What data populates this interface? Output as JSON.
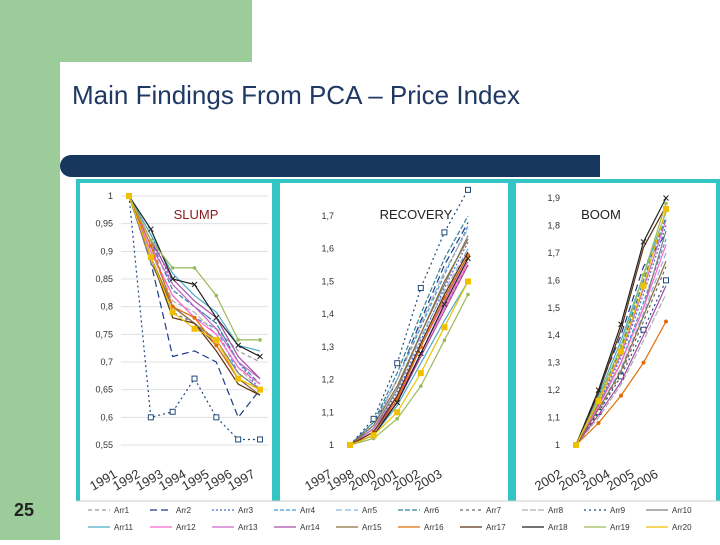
{
  "slide": {
    "title": "Main Findings From PCA – Price Index",
    "page_number": "25",
    "colors": {
      "green": "#9ccc99",
      "navy": "#17375e",
      "teal": "#33c4c4",
      "title": "#1f3864"
    }
  },
  "chart_data": [
    {
      "type": "line",
      "panel_label": "SLUMP",
      "x": [
        "1991",
        "1992",
        "1993",
        "1994",
        "1995",
        "1996",
        "1997"
      ],
      "ylim": [
        0.55,
        1.0
      ],
      "yticks": [
        "1",
        "0,95",
        "0,9",
        "0,85",
        "0,8",
        "0,75",
        "0,7",
        "0,65",
        "0,6",
        "0,55"
      ],
      "grid": true,
      "series": [
        {
          "name": "Arr1",
          "values": [
            1,
            0.92,
            0.8,
            0.78,
            0.76,
            0.72,
            0.7
          ]
        },
        {
          "name": "Arr2",
          "values": [
            1,
            0.88,
            0.71,
            0.72,
            0.7,
            0.6,
            0.65
          ]
        },
        {
          "name": "Arr3",
          "values": [
            1,
            0.93,
            0.84,
            0.8,
            0.77,
            0.7,
            0.65
          ]
        },
        {
          "name": "Arr4",
          "values": [
            1,
            0.9,
            0.82,
            0.78,
            0.76,
            0.68,
            0.65
          ]
        },
        {
          "name": "Arr5",
          "values": [
            1,
            0.91,
            0.8,
            0.77,
            0.74,
            0.67,
            0.64
          ]
        },
        {
          "name": "Arr6",
          "values": [
            1,
            0.92,
            0.83,
            0.8,
            0.77,
            0.7,
            0.66
          ]
        },
        {
          "name": "Arr7",
          "values": [
            1,
            0.89,
            0.79,
            0.77,
            0.74,
            0.67,
            0.64
          ]
        },
        {
          "name": "Arr8",
          "values": [
            1,
            0.9,
            0.81,
            0.79,
            0.75,
            0.69,
            0.65
          ]
        },
        {
          "name": "Arr9",
          "values": [
            1,
            0.6,
            0.61,
            0.67,
            0.6,
            0.56,
            0.56
          ]
        },
        {
          "name": "Arr10",
          "values": [
            1,
            0.88,
            0.8,
            0.77,
            0.74,
            0.68,
            0.65
          ]
        },
        {
          "name": "Arr11",
          "values": [
            1,
            0.93,
            0.86,
            0.82,
            0.79,
            0.73,
            0.72
          ]
        },
        {
          "name": "Arr12",
          "values": [
            1,
            0.9,
            0.82,
            0.78,
            0.75,
            0.69,
            0.66
          ]
        },
        {
          "name": "Arr13",
          "values": [
            1,
            0.91,
            0.84,
            0.8,
            0.76,
            0.7,
            0.67
          ]
        },
        {
          "name": "Arr14",
          "values": [
            1,
            0.92,
            0.85,
            0.81,
            0.78,
            0.71,
            0.67
          ]
        },
        {
          "name": "Arr15",
          "values": [
            1,
            0.89,
            0.8,
            0.77,
            0.73,
            0.67,
            0.64
          ]
        },
        {
          "name": "Arr16",
          "values": [
            1,
            0.91,
            0.8,
            0.78,
            0.73,
            0.67,
            0.65
          ]
        },
        {
          "name": "Arr17",
          "values": [
            1,
            0.89,
            0.78,
            0.77,
            0.72,
            0.66,
            0.64
          ]
        },
        {
          "name": "Arr18",
          "values": [
            1,
            0.94,
            0.85,
            0.84,
            0.78,
            0.73,
            0.71
          ]
        },
        {
          "name": "Arr19",
          "values": [
            1,
            0.92,
            0.87,
            0.87,
            0.82,
            0.74,
            0.74
          ]
        },
        {
          "name": "Arr20",
          "values": [
            1,
            0.89,
            0.79,
            0.76,
            0.74,
            0.67,
            0.65
          ]
        }
      ]
    },
    {
      "type": "line",
      "panel_label": "RECOVERY",
      "x": [
        "1997",
        "1998",
        "2000",
        "2001",
        "2002",
        "2003"
      ],
      "ylim": [
        1.0,
        1.7
      ],
      "yticks": [
        "1,7",
        "1,6",
        "1,5",
        "1,4",
        "1,3",
        "1,2",
        "1,1",
        "1"
      ],
      "grid": false,
      "series": [
        {
          "name": "Arr1",
          "values": [
            1.0,
            1.05,
            1.15,
            1.3,
            1.45,
            1.6
          ]
        },
        {
          "name": "Arr2",
          "values": [
            1.0,
            1.06,
            1.2,
            1.38,
            1.55,
            1.68
          ]
        },
        {
          "name": "Arr3",
          "values": [
            1.0,
            1.05,
            1.16,
            1.32,
            1.48,
            1.62
          ]
        },
        {
          "name": "Arr4",
          "values": [
            1.0,
            1.07,
            1.2,
            1.36,
            1.52,
            1.67
          ]
        },
        {
          "name": "Arr5",
          "values": [
            1.0,
            1.05,
            1.17,
            1.33,
            1.47,
            1.6
          ]
        },
        {
          "name": "Arr6",
          "values": [
            1.0,
            1.07,
            1.22,
            1.4,
            1.57,
            1.7
          ]
        },
        {
          "name": "Arr7",
          "values": [
            1.0,
            1.04,
            1.14,
            1.28,
            1.42,
            1.55
          ]
        },
        {
          "name": "Arr8",
          "values": [
            1.0,
            1.06,
            1.2,
            1.37,
            1.53,
            1.66
          ]
        },
        {
          "name": "Arr9",
          "values": [
            1.0,
            1.08,
            1.25,
            1.48,
            1.65,
            1.78
          ]
        },
        {
          "name": "Arr10",
          "values": [
            1.0,
            1.05,
            1.17,
            1.34,
            1.49,
            1.64
          ]
        },
        {
          "name": "Arr11",
          "values": [
            1.0,
            1.03,
            1.12,
            1.25,
            1.38,
            1.5
          ]
        },
        {
          "name": "Arr12",
          "values": [
            1.0,
            1.04,
            1.14,
            1.28,
            1.42,
            1.56
          ]
        },
        {
          "name": "Arr13",
          "values": [
            1.0,
            1.05,
            1.15,
            1.3,
            1.44,
            1.58
          ]
        },
        {
          "name": "Arr14",
          "values": [
            1.0,
            1.04,
            1.13,
            1.27,
            1.41,
            1.55
          ]
        },
        {
          "name": "Arr15",
          "values": [
            1.0,
            1.06,
            1.18,
            1.34,
            1.5,
            1.63
          ]
        },
        {
          "name": "Arr16",
          "values": [
            1.0,
            1.04,
            1.14,
            1.3,
            1.45,
            1.58
          ]
        },
        {
          "name": "Arr17",
          "values": [
            1.0,
            1.04,
            1.15,
            1.31,
            1.46,
            1.59
          ]
        },
        {
          "name": "Arr18",
          "values": [
            1.0,
            1.03,
            1.13,
            1.28,
            1.43,
            1.57
          ]
        },
        {
          "name": "Arr19",
          "values": [
            1.0,
            1.02,
            1.08,
            1.18,
            1.32,
            1.46
          ]
        },
        {
          "name": "Arr20",
          "values": [
            1.0,
            1.03,
            1.1,
            1.22,
            1.36,
            1.5
          ]
        }
      ]
    },
    {
      "type": "line",
      "panel_label": "BOOM",
      "x": [
        "2002",
        "2003",
        "2004",
        "2005",
        "2006"
      ],
      "ylim": [
        1.0,
        1.9
      ],
      "yticks": [
        "1,9",
        "1,8",
        "1,7",
        "1,6",
        "1,5",
        "1,4",
        "1,3",
        "1,2",
        "1,1",
        "1"
      ],
      "grid": false,
      "series": [
        {
          "name": "Arr1",
          "values": [
            1.0,
            1.16,
            1.34,
            1.6,
            1.85
          ]
        },
        {
          "name": "Arr2",
          "values": [
            1.0,
            1.2,
            1.4,
            1.65,
            1.77
          ]
        },
        {
          "name": "Arr3",
          "values": [
            1.0,
            1.15,
            1.32,
            1.55,
            1.8
          ]
        },
        {
          "name": "Arr4",
          "values": [
            1.0,
            1.14,
            1.3,
            1.52,
            1.75
          ]
        },
        {
          "name": "Arr5",
          "values": [
            1.0,
            1.13,
            1.28,
            1.48,
            1.7
          ]
        },
        {
          "name": "Arr6",
          "values": [
            1.0,
            1.17,
            1.35,
            1.6,
            1.83
          ]
        },
        {
          "name": "Arr7",
          "values": [
            1.0,
            1.12,
            1.26,
            1.45,
            1.65
          ]
        },
        {
          "name": "Arr8",
          "values": [
            1.0,
            1.1,
            1.22,
            1.38,
            1.55
          ]
        },
        {
          "name": "Arr9",
          "values": [
            1.0,
            1.12,
            1.25,
            1.42,
            1.6
          ]
        },
        {
          "name": "Arr10",
          "values": [
            1.0,
            1.15,
            1.3,
            1.5,
            1.78
          ]
        },
        {
          "name": "Arr11",
          "values": [
            1.0,
            1.18,
            1.38,
            1.62,
            1.85
          ]
        },
        {
          "name": "Arr12",
          "values": [
            1.0,
            1.14,
            1.3,
            1.5,
            1.73
          ]
        },
        {
          "name": "Arr13",
          "values": [
            1.0,
            1.16,
            1.33,
            1.57,
            1.82
          ]
        },
        {
          "name": "Arr14",
          "values": [
            1.0,
            1.11,
            1.23,
            1.4,
            1.58
          ]
        },
        {
          "name": "Arr15",
          "values": [
            1.0,
            1.13,
            1.27,
            1.47,
            1.67
          ]
        },
        {
          "name": "Arr16",
          "values": [
            1.0,
            1.08,
            1.18,
            1.3,
            1.45
          ]
        },
        {
          "name": "Arr17",
          "values": [
            1.0,
            1.19,
            1.42,
            1.72,
            1.87
          ]
        },
        {
          "name": "Arr18",
          "values": [
            1.0,
            1.2,
            1.44,
            1.74,
            1.9
          ]
        },
        {
          "name": "Arr19",
          "values": [
            1.0,
            1.17,
            1.36,
            1.62,
            1.88
          ]
        },
        {
          "name": "Arr20",
          "values": [
            1.0,
            1.16,
            1.34,
            1.58,
            1.86
          ]
        }
      ]
    }
  ],
  "legend": [
    "Arr1",
    "Arr2",
    "Arr3",
    "Arr4",
    "Arr5",
    "Arr6",
    "Arr7",
    "Arr8",
    "Arr9",
    "Arr10",
    "Arr11",
    "Arr12",
    "Arr13",
    "Arr14",
    "Arr15",
    "Arr16",
    "Arr17",
    "Arr18",
    "Arr19",
    "Arr20"
  ],
  "series_styles": [
    {
      "color": "#9a9a9a",
      "dash": "4 3",
      "marker": "none"
    },
    {
      "color": "#1f3a8a",
      "dash": "7 4",
      "marker": "none"
    },
    {
      "color": "#4c6fc7",
      "dash": "2 2",
      "marker": "none"
    },
    {
      "color": "#3a9ad9",
      "dash": "4 2",
      "marker": "none"
    },
    {
      "color": "#8db3e2",
      "dash": "6 3",
      "marker": "none"
    },
    {
      "color": "#31859c",
      "dash": "5 2",
      "marker": "none"
    },
    {
      "color": "#6a6a6a",
      "dash": "3 3",
      "marker": "none"
    },
    {
      "color": "#b0b0b0",
      "dash": "6 2",
      "marker": "none"
    },
    {
      "color": "#1f497d",
      "dash": "2 3",
      "marker": "square"
    },
    {
      "color": "#7f7f7f",
      "dash": "",
      "marker": "none"
    },
    {
      "color": "#4bacc6",
      "dash": "",
      "marker": "none"
    },
    {
      "color": "#ff66cc",
      "dash": "",
      "marker": "none"
    },
    {
      "color": "#cc66cc",
      "dash": "",
      "marker": "none"
    },
    {
      "color": "#a64ca6",
      "dash": "",
      "marker": "none"
    },
    {
      "color": "#8c6d3f",
      "dash": "",
      "marker": "none"
    },
    {
      "color": "#e36c09",
      "dash": "",
      "marker": "circle"
    },
    {
      "color": "#5a3010",
      "dash": "",
      "marker": "none"
    },
    {
      "color": "#222222",
      "dash": "",
      "marker": "x"
    },
    {
      "color": "#9bbb59",
      "dash": "",
      "marker": "dot"
    },
    {
      "color": "#f0c000",
      "dash": "",
      "marker": "square"
    }
  ]
}
